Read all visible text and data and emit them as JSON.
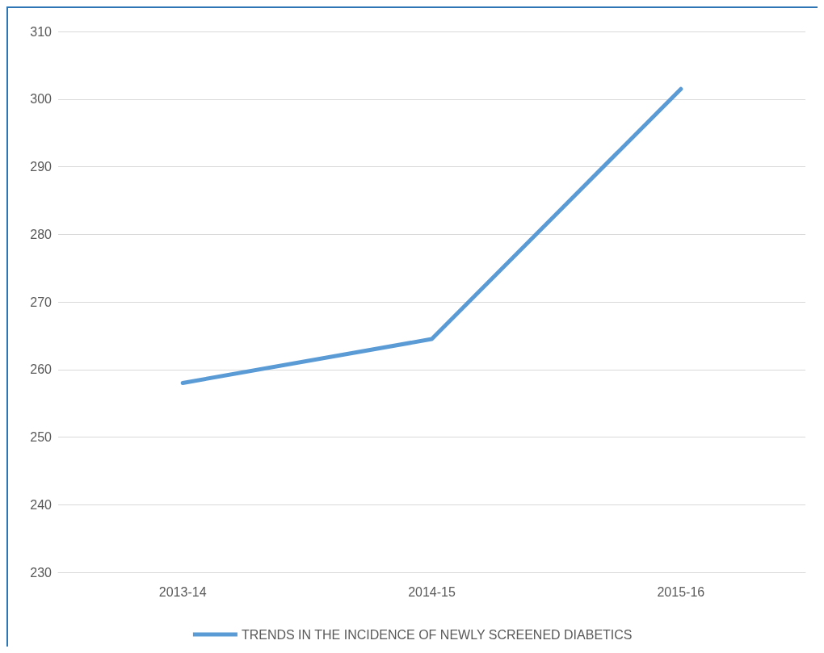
{
  "chart_data": {
    "type": "line",
    "categories": [
      "2013-14",
      "2014-15",
      "2015-16"
    ],
    "series": [
      {
        "name": "TRENDS IN THE INCIDENCE OF NEWLY SCREENED DIABETICS",
        "color": "#5b9bd5",
        "values": [
          258,
          264.5,
          301.5
        ]
      }
    ],
    "ylim": [
      230,
      310
    ],
    "yticks": [
      230,
      240,
      250,
      260,
      270,
      280,
      290,
      300,
      310
    ],
    "grid": "y",
    "legend": "bottom",
    "marker": "none"
  }
}
